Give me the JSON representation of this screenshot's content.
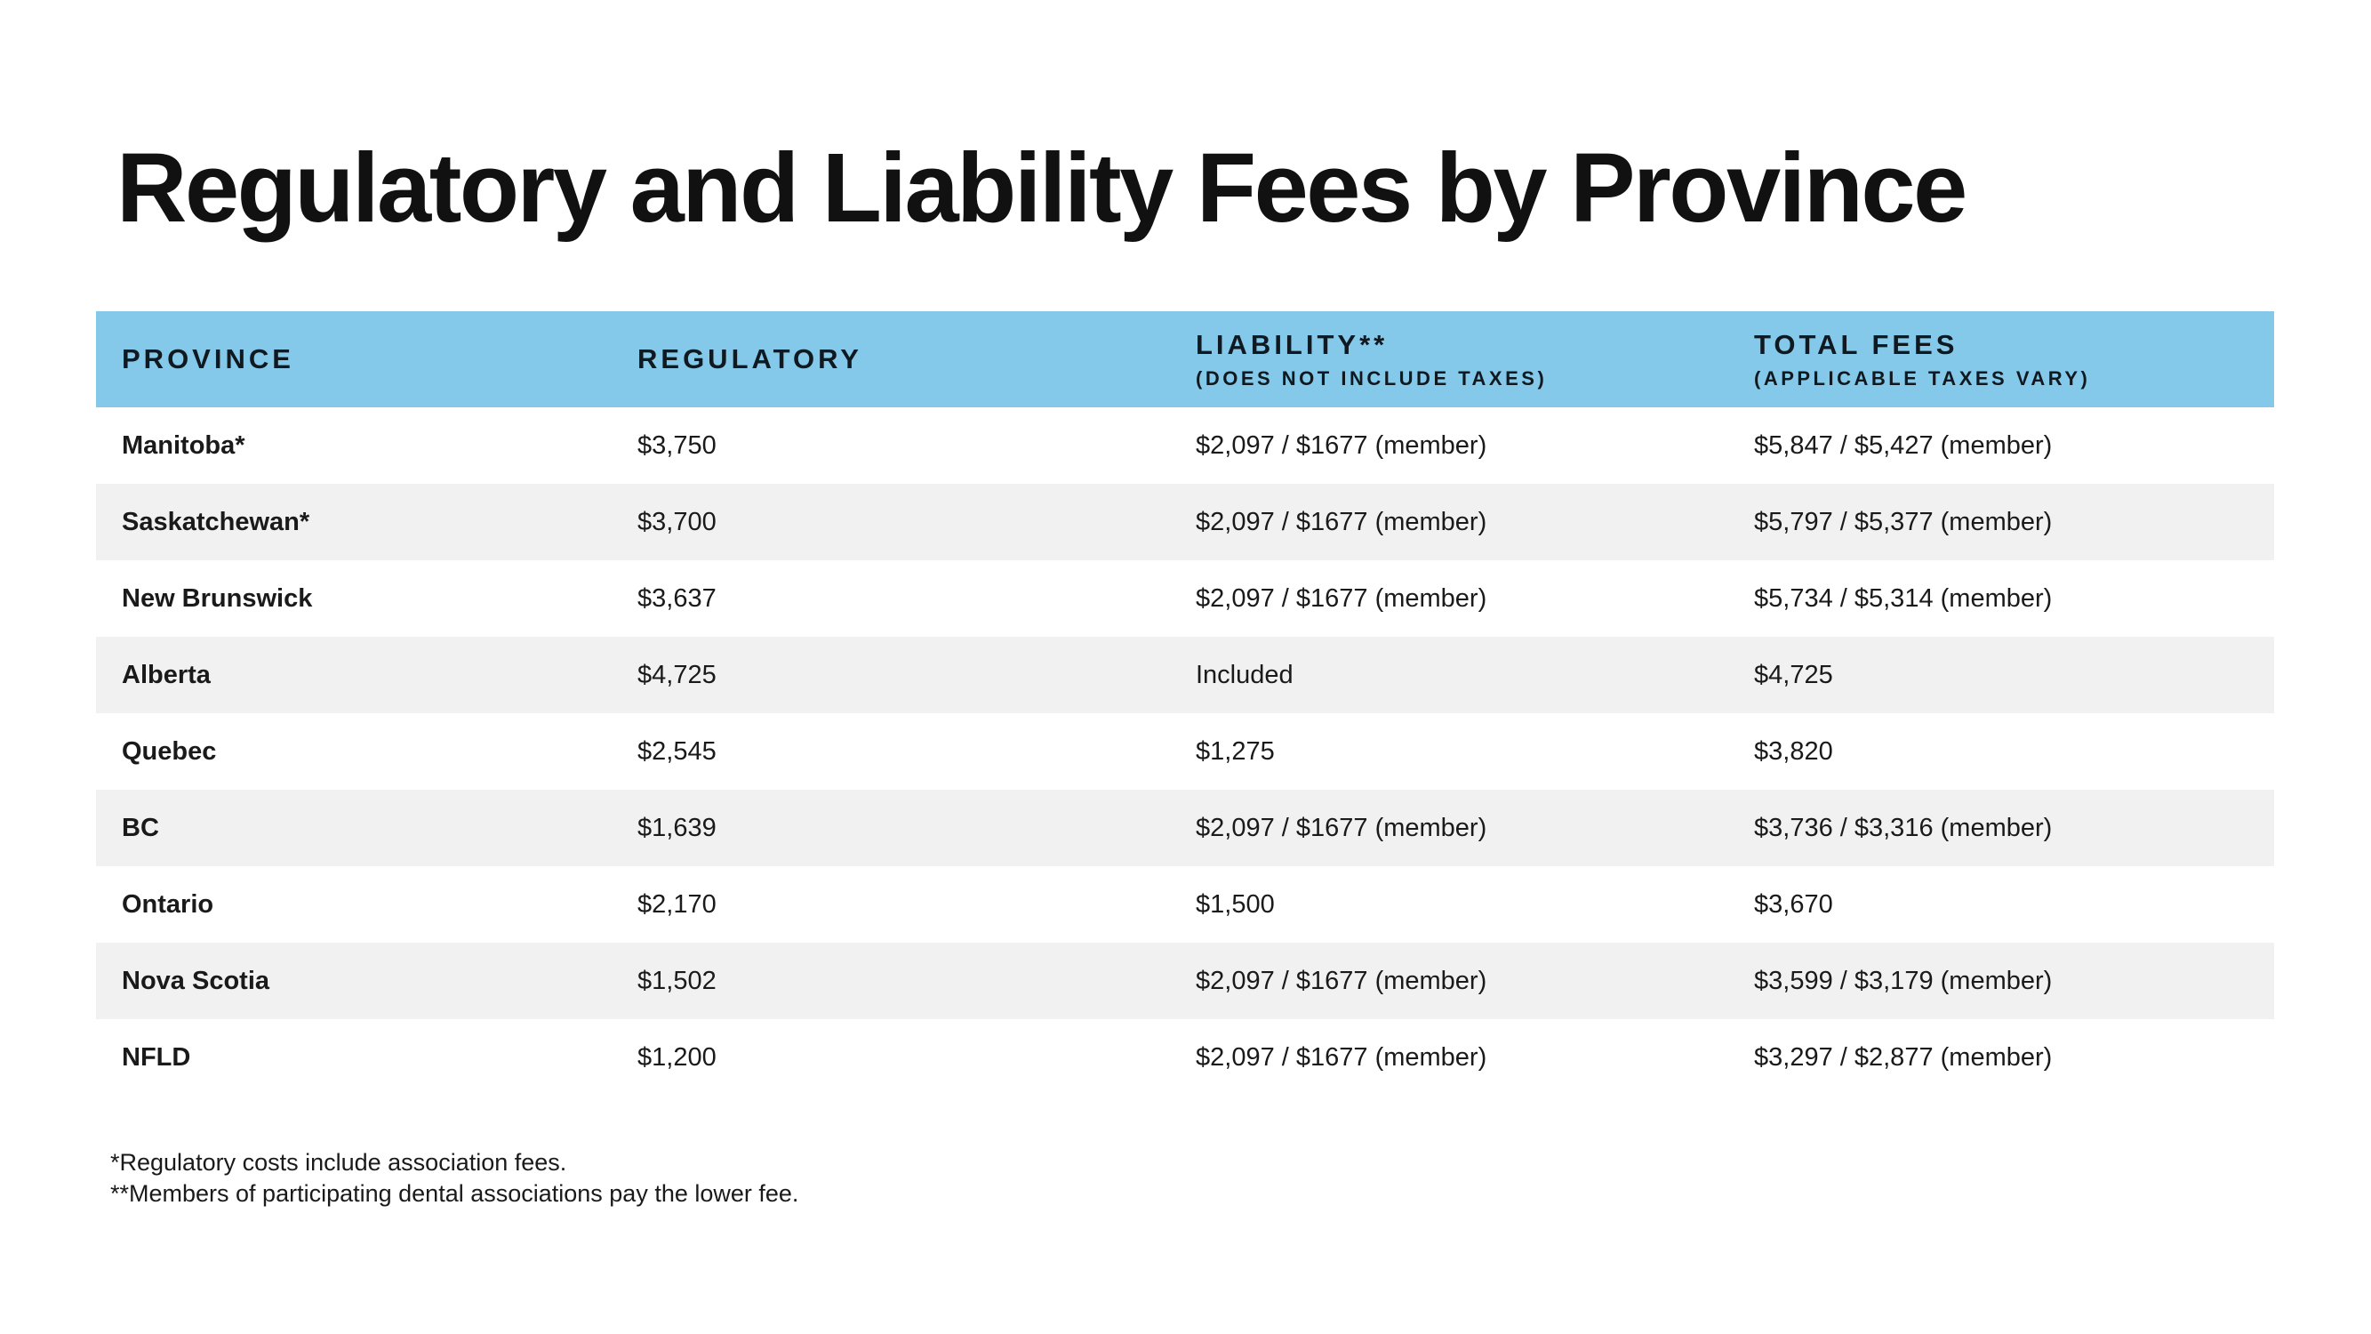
{
  "chart_data": {
    "type": "table",
    "title": "Regulatory and Liability Fees by Province",
    "columns": [
      {
        "key": "province",
        "label": "PROVINCE",
        "sublabel": ""
      },
      {
        "key": "regulatory",
        "label": "REGULATORY",
        "sublabel": ""
      },
      {
        "key": "liability",
        "label": "LIABILITY**",
        "sublabel": "(DOES NOT INCLUDE TAXES)"
      },
      {
        "key": "total",
        "label": "TOTAL FEES",
        "sublabel": "(APPLICABLE TAXES VARY)"
      }
    ],
    "rows": [
      {
        "province": "Manitoba*",
        "regulatory": "$3,750",
        "liability": "$2,097 / $1677 (member)",
        "total": "$5,847 / $5,427 (member)"
      },
      {
        "province": "Saskatchewan*",
        "regulatory": "$3,700",
        "liability": "$2,097 / $1677 (member)",
        "total": "$5,797 / $5,377 (member)"
      },
      {
        "province": "New Brunswick",
        "regulatory": "$3,637",
        "liability": "$2,097 / $1677 (member)",
        "total": "$5,734 / $5,314 (member)"
      },
      {
        "province": "Alberta",
        "regulatory": "$4,725",
        "liability": "Included",
        "total": "$4,725"
      },
      {
        "province": "Quebec",
        "regulatory": "$2,545",
        "liability": "$1,275",
        "total": "$3,820"
      },
      {
        "province": "BC",
        "regulatory": "$1,639",
        "liability": "$2,097 / $1677 (member)",
        "total": "$3,736 / $3,316 (member)"
      },
      {
        "province": "Ontario",
        "regulatory": "$2,170",
        "liability": "$1,500",
        "total": "$3,670"
      },
      {
        "province": "Nova Scotia",
        "regulatory": "$1,502",
        "liability": "$2,097 / $1677 (member)",
        "total": "$3,599 / $3,179 (member)"
      },
      {
        "province": "NFLD",
        "regulatory": "$1,200",
        "liability": "$2,097 / $1677 (member)",
        "total": "$3,297 / $2,877 (member)"
      }
    ],
    "footnotes": [
      "*Regulatory costs include association fees.",
      "**Members of participating dental associations pay the lower fee."
    ],
    "layout": {
      "legend": "none",
      "grid": "off",
      "zebra_striping": true
    },
    "colors": {
      "header_bg": "#84C9E9",
      "header_text": "#101820",
      "row_bg": "#FFFFFF",
      "row_alt_bg": "#F1F1F1",
      "body_text": "#1A1A1A",
      "page_bg": "#FFFFFF"
    }
  }
}
